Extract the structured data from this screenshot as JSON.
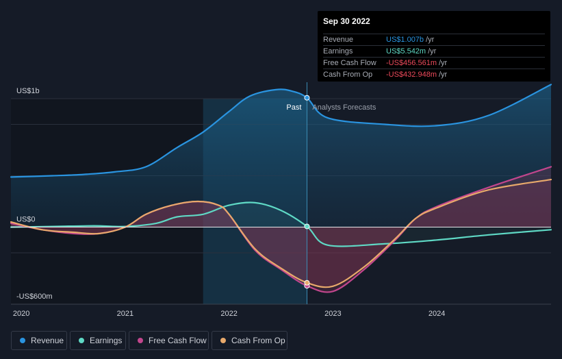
{
  "chart_data": {
    "type": "area",
    "x_range": [
      2019.9,
      2025.1
    ],
    "ylim": [
      -0.6,
      1.0
    ],
    "y_ticks": [
      {
        "value": 1.0,
        "label": "US$1b"
      },
      {
        "value": 0.0,
        "label": "US$0"
      },
      {
        "value": -0.6,
        "label": "-US$600m"
      }
    ],
    "x_ticks": [
      {
        "value": 2020.0,
        "label": "2020"
      },
      {
        "value": 2021.0,
        "label": "2021"
      },
      {
        "value": 2022.0,
        "label": "2022"
      },
      {
        "value": 2023.0,
        "label": "2023"
      },
      {
        "value": 2024.0,
        "label": "2024"
      }
    ],
    "past_start": 2021.75,
    "divider_x": 2022.75,
    "past_label": "Past",
    "forecast_label": "Analysts Forecasts",
    "series": [
      {
        "name": "Revenue",
        "color": "#2a94e0",
        "values": [
          [
            2019.9,
            0.39
          ],
          [
            2020.3,
            0.4
          ],
          [
            2020.6,
            0.41
          ],
          [
            2020.9,
            0.43
          ],
          [
            2021.2,
            0.47
          ],
          [
            2021.5,
            0.62
          ],
          [
            2021.75,
            0.74
          ],
          [
            2022.0,
            0.9
          ],
          [
            2022.2,
            1.02
          ],
          [
            2022.45,
            1.07
          ],
          [
            2022.6,
            1.06
          ],
          [
            2022.75,
            1.007
          ],
          [
            2022.95,
            0.85
          ],
          [
            2023.5,
            0.8
          ],
          [
            2024.0,
            0.79
          ],
          [
            2024.5,
            0.87
          ],
          [
            2025.1,
            1.11
          ]
        ]
      },
      {
        "name": "Earnings",
        "color": "#5fd9c5",
        "values": [
          [
            2019.9,
            0.0
          ],
          [
            2020.3,
            0.005
          ],
          [
            2020.7,
            0.01
          ],
          [
            2021.0,
            0.005
          ],
          [
            2021.3,
            0.03
          ],
          [
            2021.5,
            0.08
          ],
          [
            2021.75,
            0.1
          ],
          [
            2022.0,
            0.17
          ],
          [
            2022.25,
            0.19
          ],
          [
            2022.5,
            0.13
          ],
          [
            2022.75,
            0.0055
          ],
          [
            2022.95,
            -0.14
          ],
          [
            2023.5,
            -0.13
          ],
          [
            2024.0,
            -0.1
          ],
          [
            2024.5,
            -0.06
          ],
          [
            2025.1,
            -0.02
          ]
        ]
      },
      {
        "name": "Free Cash Flow",
        "color": "#c2468d",
        "values": [
          [
            2019.9,
            0.03
          ],
          [
            2020.2,
            -0.02
          ],
          [
            2020.5,
            -0.05
          ],
          [
            2020.75,
            -0.05
          ],
          [
            2021.0,
            0.0
          ],
          [
            2021.2,
            0.1
          ],
          [
            2021.45,
            0.17
          ],
          [
            2021.7,
            0.2
          ],
          [
            2021.9,
            0.17
          ],
          [
            2022.0,
            0.1
          ],
          [
            2022.25,
            -0.18
          ],
          [
            2022.5,
            -0.33
          ],
          [
            2022.75,
            -0.457
          ],
          [
            2023.0,
            -0.5
          ],
          [
            2023.3,
            -0.33
          ],
          [
            2023.6,
            -0.1
          ],
          [
            2023.8,
            0.07
          ],
          [
            2024.0,
            0.16
          ],
          [
            2024.5,
            0.31
          ],
          [
            2025.1,
            0.47
          ]
        ]
      },
      {
        "name": "Cash From Op",
        "color": "#e8a96b",
        "values": [
          [
            2019.9,
            0.04
          ],
          [
            2020.2,
            -0.02
          ],
          [
            2020.5,
            -0.04
          ],
          [
            2020.75,
            -0.05
          ],
          [
            2021.0,
            0.0
          ],
          [
            2021.2,
            0.1
          ],
          [
            2021.45,
            0.17
          ],
          [
            2021.7,
            0.2
          ],
          [
            2021.9,
            0.17
          ],
          [
            2022.0,
            0.1
          ],
          [
            2022.25,
            -0.17
          ],
          [
            2022.5,
            -0.32
          ],
          [
            2022.75,
            -0.433
          ],
          [
            2023.0,
            -0.46
          ],
          [
            2023.3,
            -0.31
          ],
          [
            2023.6,
            -0.09
          ],
          [
            2023.8,
            0.07
          ],
          [
            2024.0,
            0.15
          ],
          [
            2024.5,
            0.29
          ],
          [
            2025.1,
            0.37
          ]
        ]
      }
    ]
  },
  "tooltip": {
    "date": "Sep 30 2022",
    "rows": [
      {
        "label": "Revenue",
        "value": "US$1.007b",
        "unit": "/yr",
        "color": "#2a94e0"
      },
      {
        "label": "Earnings",
        "value": "US$5.542m",
        "unit": "/yr",
        "color": "#5fd9c5"
      },
      {
        "label": "Free Cash Flow",
        "value": "-US$456.561m",
        "unit": "/yr",
        "color": "#ee4a5b"
      },
      {
        "label": "Cash From Op",
        "value": "-US$432.948m",
        "unit": "/yr",
        "color": "#ee4a5b"
      }
    ]
  },
  "legend": [
    {
      "label": "Revenue",
      "color": "#2a94e0"
    },
    {
      "label": "Earnings",
      "color": "#5fd9c5"
    },
    {
      "label": "Free Cash Flow",
      "color": "#c2468d"
    },
    {
      "label": "Cash From Op",
      "color": "#e8a96b"
    }
  ]
}
